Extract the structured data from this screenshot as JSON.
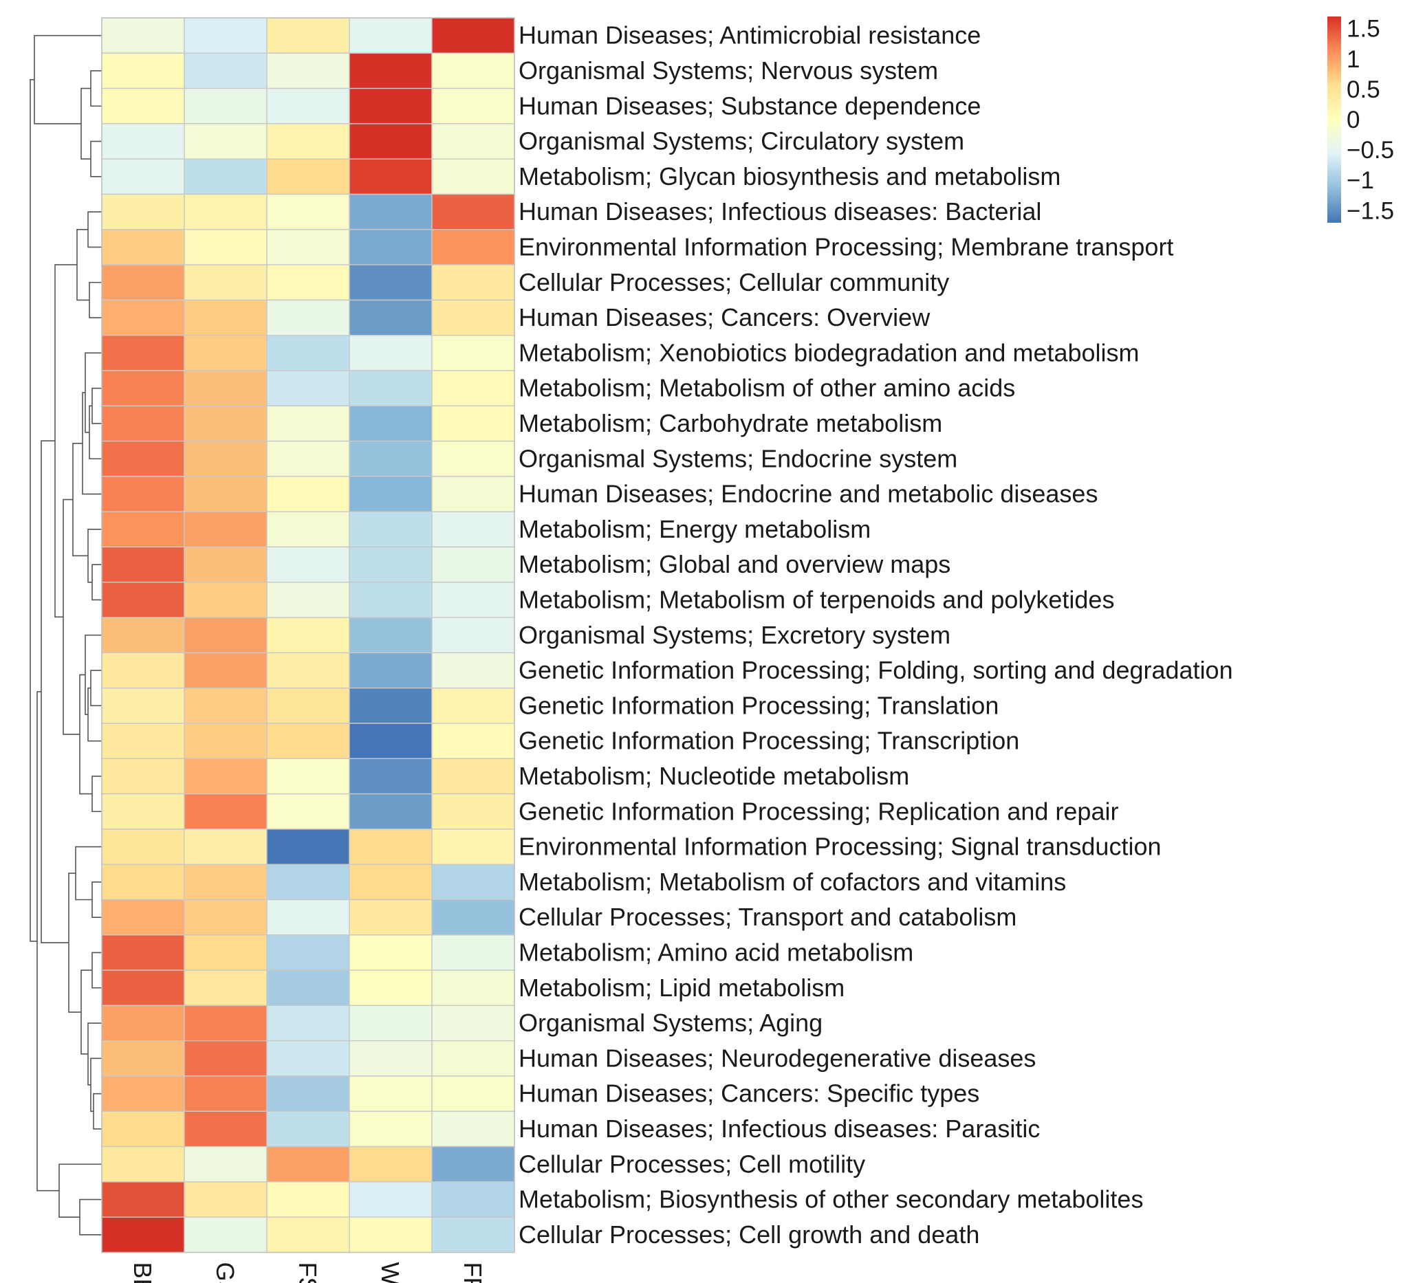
{
  "chart_data": {
    "type": "heatmap",
    "title": "",
    "columns": [
      "BB",
      "GS",
      "FS",
      "WP",
      "FP"
    ],
    "rows": [
      "Human Diseases; Antimicrobial resistance",
      "Organismal Systems; Nervous system",
      "Human Diseases; Substance dependence",
      "Organismal Systems; Circulatory system",
      "Metabolism; Glycan biosynthesis and metabolism",
      "Human Diseases; Infectious diseases: Bacterial",
      "Environmental Information Processing; Membrane transport",
      "Cellular Processes; Cellular community",
      "Human Diseases; Cancers: Overview",
      "Metabolism; Xenobiotics biodegradation and metabolism",
      "Metabolism; Metabolism of other amino acids",
      "Metabolism; Carbohydrate metabolism",
      "Organismal Systems; Endocrine system",
      "Human Diseases; Endocrine and metabolic diseases",
      "Metabolism; Energy metabolism",
      "Metabolism; Global and overview maps",
      "Metabolism; Metabolism of terpenoids and polyketides",
      "Organismal Systems; Excretory system",
      "Genetic Information Processing; Folding, sorting and degradation",
      "Genetic Information Processing; Translation",
      "Genetic Information Processing; Transcription",
      "Metabolism; Nucleotide metabolism",
      "Genetic Information Processing; Replication and repair",
      "Environmental Information Processing; Signal transduction",
      "Metabolism; Metabolism of cofactors and vitamins",
      "Cellular Processes; Transport and catabolism",
      "Metabolism; Amino acid metabolism",
      "Metabolism; Lipid metabolism",
      "Organismal Systems; Aging",
      "Human Diseases; Neurodegenerative diseases",
      "Human Diseases; Cancers: Specific types",
      "Human Diseases; Infectious diseases: Parasitic",
      "Cellular Processes; Cell motility",
      "Metabolism; Biosynthesis of other secondary metabolites",
      "Cellular Processes; Cell growth and death"
    ],
    "values": [
      [
        -0.3,
        -0.6,
        0.3,
        -0.5,
        1.7
      ],
      [
        0.1,
        -0.7,
        -0.3,
        1.7,
        -0.1
      ],
      [
        0.1,
        -0.4,
        -0.5,
        1.7,
        -0.1
      ],
      [
        -0.5,
        -0.2,
        0.2,
        1.7,
        -0.2
      ],
      [
        -0.5,
        -0.8,
        0.6,
        1.6,
        -0.2
      ],
      [
        0.3,
        0.2,
        -0.1,
        -1.3,
        1.4
      ],
      [
        0.7,
        0.1,
        -0.2,
        -1.3,
        1.1
      ],
      [
        1.0,
        0.3,
        0.1,
        -1.5,
        0.4
      ],
      [
        0.9,
        0.7,
        -0.4,
        -1.4,
        0.4
      ],
      [
        1.3,
        0.7,
        -0.8,
        -0.5,
        -0.1
      ],
      [
        1.2,
        0.8,
        -0.7,
        -0.8,
        0.1
      ],
      [
        1.2,
        0.8,
        -0.2,
        -1.2,
        0.1
      ],
      [
        1.3,
        0.8,
        -0.2,
        -1.1,
        -0.1
      ],
      [
        1.2,
        0.8,
        0.1,
        -1.2,
        -0.2
      ],
      [
        1.1,
        1.0,
        -0.2,
        -0.8,
        -0.5
      ],
      [
        1.4,
        0.8,
        -0.5,
        -0.8,
        -0.4
      ],
      [
        1.4,
        0.7,
        -0.3,
        -0.8,
        -0.5
      ],
      [
        0.8,
        1.0,
        0.2,
        -1.1,
        -0.5
      ],
      [
        0.4,
        1.0,
        0.3,
        -1.3,
        -0.3
      ],
      [
        0.3,
        0.7,
        0.5,
        -1.6,
        0.2
      ],
      [
        0.4,
        0.7,
        0.6,
        -1.7,
        0.1
      ],
      [
        0.4,
        0.9,
        -0.1,
        -1.5,
        0.4
      ],
      [
        0.3,
        1.2,
        -0.1,
        -1.4,
        0.3
      ],
      [
        0.5,
        0.3,
        -1.7,
        0.6,
        0.2
      ],
      [
        0.6,
        0.7,
        -0.9,
        0.6,
        -0.9
      ],
      [
        0.9,
        0.7,
        -0.5,
        0.4,
        -1.1
      ],
      [
        1.4,
        0.6,
        -0.9,
        0.0,
        -0.4
      ],
      [
        1.4,
        0.4,
        -1.0,
        0.0,
        -0.2
      ],
      [
        1.0,
        1.2,
        -0.7,
        -0.4,
        -0.3
      ],
      [
        0.8,
        1.3,
        -0.7,
        -0.3,
        -0.2
      ],
      [
        0.9,
        1.2,
        -1.0,
        -0.1,
        -0.1
      ],
      [
        0.6,
        1.3,
        -0.8,
        -0.1,
        -0.3
      ],
      [
        0.4,
        -0.3,
        1.0,
        0.6,
        -1.3
      ],
      [
        1.5,
        0.4,
        0.1,
        -0.6,
        -0.9
      ],
      [
        1.7,
        -0.4,
        0.2,
        0.1,
        -0.8
      ]
    ],
    "color_scale": {
      "min": -1.7,
      "max": 1.7,
      "stops": [
        "#4575b4",
        "#91bfdb",
        "#e0f3f8",
        "#ffffbf",
        "#fee090",
        "#fc8d59",
        "#d73027"
      ],
      "ticks": [
        1.5,
        1,
        0.5,
        0,
        -0.5,
        -1,
        -1.5
      ],
      "tick_labels": [
        "1.5",
        "1",
        "0.5",
        "0",
        "−0.5",
        "−1",
        "−1.5"
      ]
    },
    "legend_position": "top-right",
    "row_dendrogram": true,
    "xlabel": "",
    "ylabel": ""
  }
}
